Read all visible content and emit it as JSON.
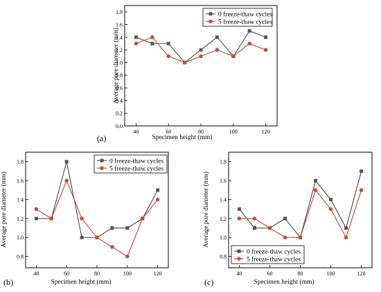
{
  "chart_data": [
    {
      "type": "line",
      "panel_label": "(a)",
      "xlabel": "Specimen height (mm)",
      "ylabel": "Average pore diameter (mm)",
      "xlim": [
        33,
        127
      ],
      "ylim": [
        0.0,
        1.9
      ],
      "xticks": [
        40,
        60,
        80,
        100,
        120
      ],
      "yticks": [
        0.0,
        0.2,
        0.4,
        0.6,
        0.8,
        1.0,
        1.2,
        1.4,
        1.6,
        1.8
      ],
      "legend_position": "top-right",
      "x": [
        40,
        50,
        60,
        70,
        80,
        90,
        100,
        110,
        120
      ],
      "series": [
        {
          "name": "0 freeze-thaw cycles",
          "color": "#555555",
          "marker": "square",
          "values": [
            1.4,
            1.3,
            1.3,
            1.0,
            1.2,
            1.4,
            1.1,
            1.5,
            1.4
          ]
        },
        {
          "name": "5 freeze-thaw cycles",
          "color": "#c0503a",
          "marker": "circle",
          "values": [
            1.3,
            1.4,
            1.1,
            1.0,
            1.1,
            1.2,
            1.1,
            1.3,
            1.2
          ]
        }
      ]
    },
    {
      "type": "line",
      "panel_label": "(b)",
      "xlabel": "Specimen height (mm)",
      "ylabel": "Average pore diameter (mm)",
      "xlim": [
        33,
        127
      ],
      "ylim": [
        0.68,
        1.9
      ],
      "xticks": [
        40,
        60,
        80,
        100,
        120
      ],
      "yticks": [
        0.8,
        1.0,
        1.2,
        1.4,
        1.6,
        1.8
      ],
      "legend_position": "top-right",
      "x": [
        40,
        50,
        60,
        70,
        80,
        90,
        100,
        110,
        120
      ],
      "series": [
        {
          "name": "0 freeze-thaw cycles",
          "color": "#555555",
          "marker": "square",
          "values": [
            1.2,
            1.2,
            1.8,
            1.0,
            1.0,
            1.1,
            1.1,
            1.2,
            1.5
          ]
        },
        {
          "name": "5 freeze-thaw cycles",
          "color": "#c0503a",
          "marker": "circle",
          "values": [
            1.3,
            1.2,
            1.6,
            1.2,
            1.0,
            0.9,
            0.8,
            1.2,
            1.4
          ]
        }
      ]
    },
    {
      "type": "line",
      "panel_label": "(c)",
      "xlabel": "Specimen height (mm)",
      "ylabel": "Average pore diameter (mm)",
      "xlim": [
        33,
        127
      ],
      "ylim": [
        0.68,
        1.9
      ],
      "xticks": [
        40,
        60,
        80,
        100,
        120
      ],
      "yticks": [
        0.8,
        1.0,
        1.2,
        1.4,
        1.6,
        1.8
      ],
      "legend_position": "bottom-left",
      "x": [
        40,
        50,
        60,
        70,
        80,
        90,
        100,
        110,
        120
      ],
      "series": [
        {
          "name": "0 freeze-thaw cycles",
          "color": "#555555",
          "marker": "square",
          "values": [
            1.3,
            1.1,
            1.1,
            1.2,
            1.0,
            1.6,
            1.4,
            1.1,
            1.7
          ]
        },
        {
          "name": "5 freeze-thaw cycles",
          "color": "#c0503a",
          "marker": "circle",
          "values": [
            1.2,
            1.2,
            1.1,
            1.0,
            1.0,
            1.5,
            1.3,
            1.0,
            1.5
          ]
        }
      ]
    }
  ]
}
